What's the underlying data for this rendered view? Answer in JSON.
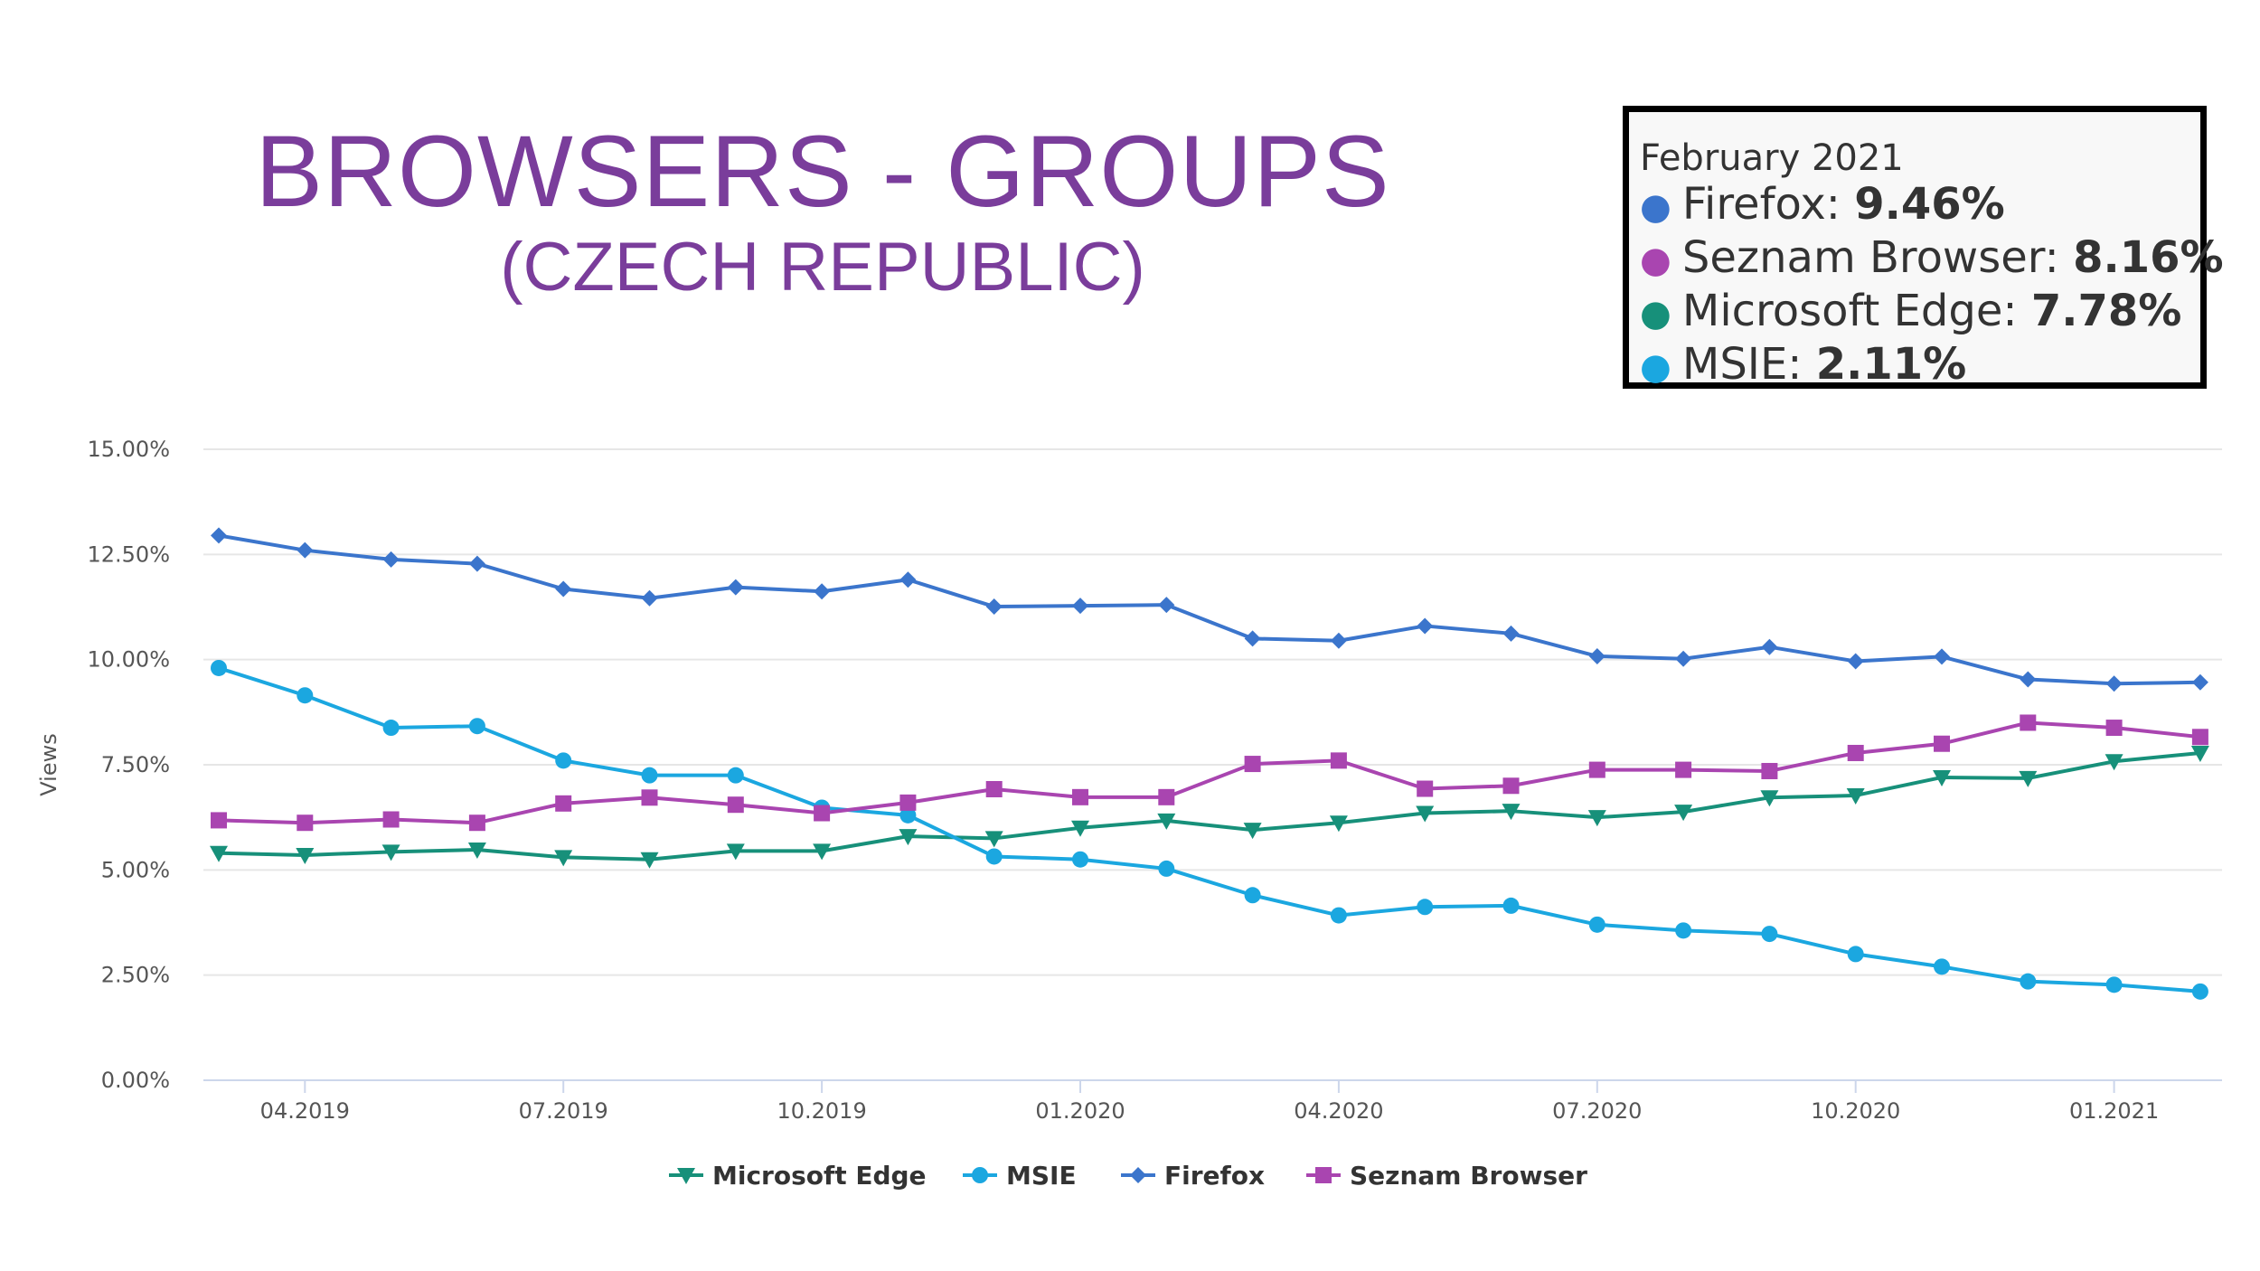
{
  "title": "BROWSERS - GROUPS",
  "subtitle": "(CZECH REPUBLIC)",
  "tooltip": {
    "header": "February 2021",
    "rows": [
      {
        "name": "Firefox",
        "value": "9.46%",
        "color": "#3b75cc"
      },
      {
        "name": "Seznam Browser",
        "value": "8.16%",
        "color": "#a945b0"
      },
      {
        "name": "Microsoft Edge",
        "value": "7.78%",
        "color": "#17907a"
      },
      {
        "name": "MSIE",
        "value": "2.11%",
        "color": "#1ba7e0"
      }
    ]
  },
  "chart_data": {
    "type": "line",
    "title": "",
    "xlabel": "",
    "ylabel": "Views",
    "ylim": [
      0,
      15
    ],
    "yticks": [
      "0.00%",
      "2.50%",
      "5.00%",
      "7.50%",
      "10.00%",
      "12.50%",
      "15.00%"
    ],
    "x": [
      "03.2019",
      "04.2019",
      "05.2019",
      "06.2019",
      "07.2019",
      "08.2019",
      "09.2019",
      "10.2019",
      "11.2019",
      "12.2019",
      "01.2020",
      "02.2020",
      "03.2020",
      "04.2020",
      "05.2020",
      "06.2020",
      "07.2020",
      "08.2020",
      "09.2020",
      "10.2020",
      "11.2020",
      "12.2020",
      "01.2021",
      "02.2021"
    ],
    "xtick_labels": [
      "04.2019",
      "07.2019",
      "10.2019",
      "01.2020",
      "04.2020",
      "07.2020",
      "10.2020",
      "01.2021"
    ],
    "xtick_index": [
      1,
      4,
      7,
      10,
      13,
      16,
      19,
      22
    ],
    "grid": true,
    "legend_position": "bottom",
    "series": [
      {
        "name": "Microsoft Edge",
        "color": "#17907a",
        "marker": "triangle-down",
        "values": [
          5.4,
          5.35,
          5.43,
          5.48,
          5.3,
          5.25,
          5.45,
          5.45,
          5.8,
          5.75,
          6.0,
          6.17,
          5.95,
          6.12,
          6.35,
          6.4,
          6.25,
          6.38,
          6.72,
          6.77,
          7.2,
          7.18,
          7.58,
          7.78
        ]
      },
      {
        "name": "MSIE",
        "color": "#1ba7e0",
        "marker": "circle",
        "values": [
          9.8,
          9.15,
          8.38,
          8.42,
          7.6,
          7.25,
          7.25,
          6.48,
          6.3,
          5.32,
          5.25,
          5.03,
          4.4,
          3.92,
          4.12,
          4.15,
          3.7,
          3.56,
          3.48,
          3.0,
          2.7,
          2.35,
          2.27,
          2.11
        ]
      },
      {
        "name": "Firefox",
        "color": "#3b75cc",
        "marker": "diamond",
        "values": [
          12.95,
          12.6,
          12.38,
          12.28,
          11.68,
          11.46,
          11.72,
          11.62,
          11.9,
          11.26,
          11.28,
          11.3,
          10.5,
          10.45,
          10.8,
          10.62,
          10.08,
          10.02,
          10.3,
          9.96,
          10.07,
          9.53,
          9.43,
          9.46
        ]
      },
      {
        "name": "Seznam Browser",
        "color": "#a945b0",
        "marker": "square",
        "values": [
          6.18,
          6.12,
          6.2,
          6.12,
          6.58,
          6.72,
          6.55,
          6.35,
          6.6,
          6.92,
          6.73,
          6.73,
          7.52,
          7.6,
          6.93,
          7.0,
          7.38,
          7.38,
          7.35,
          7.78,
          8.0,
          8.5,
          8.38,
          8.16
        ]
      }
    ]
  }
}
